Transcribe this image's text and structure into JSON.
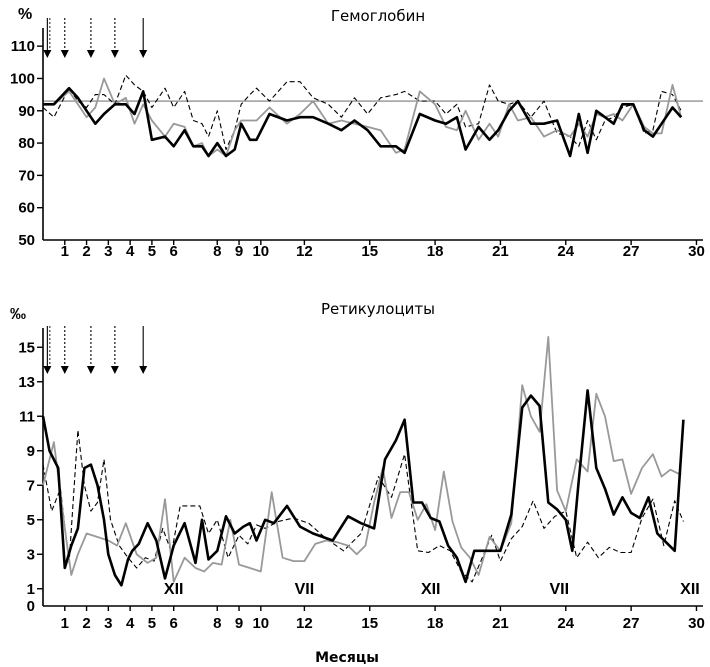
{
  "chart_data": [
    {
      "type": "line",
      "title": "Гемоглобин",
      "ylabel": "%",
      "xlabel": "",
      "ylim": [
        50,
        115
      ],
      "xlim": [
        0,
        30.3
      ],
      "yticks": [
        50,
        60,
        70,
        80,
        90,
        100,
        110
      ],
      "xticks": [
        1,
        2,
        3,
        4,
        5,
        6,
        8,
        9,
        10,
        12,
        15,
        18,
        21,
        24,
        27,
        30
      ],
      "reference_line": 93,
      "arrows_x": [
        0.2,
        1.0,
        2.2,
        3.3,
        4.6
      ],
      "series": [
        {
          "name": "black",
          "color": "#000000",
          "style": "solid-thick",
          "x": [
            0,
            0.5,
            1.2,
            1.6,
            2.0,
            2.4,
            2.8,
            3.3,
            3.8,
            4.2,
            4.6,
            5.0,
            5.6,
            6.0,
            6.5,
            6.9,
            7.3,
            7.6,
            8.0,
            8.4,
            8.8,
            9.1,
            9.5,
            9.8,
            10.4,
            11.2,
            11.8,
            12.4,
            13.1,
            13.7,
            14.3,
            14.9,
            15.5,
            16.2,
            16.6,
            17.3,
            18.0,
            18.5,
            19.0,
            19.4,
            20.0,
            20.5,
            20.9,
            21.4,
            21.8,
            22.4,
            23.0,
            23.6,
            24.2,
            24.6,
            25.0,
            25.4,
            25.8,
            26.2,
            26.6,
            27.1,
            27.6,
            28.0,
            28.4,
            28.9,
            29.3
          ],
          "y": [
            92,
            92,
            97,
            94,
            90,
            86,
            89,
            92,
            92,
            89,
            96,
            81,
            82,
            79,
            84,
            79,
            79,
            76,
            80,
            76,
            78,
            86,
            81,
            81,
            89,
            87,
            88,
            88,
            86,
            84,
            87,
            84,
            79,
            79,
            77,
            89,
            87,
            86,
            88,
            78,
            85,
            81,
            84,
            90,
            93,
            86,
            86,
            87,
            76,
            89,
            77,
            90,
            88,
            86,
            92,
            92,
            84,
            82,
            86,
            91,
            88
          ]
        },
        {
          "name": "gray",
          "color": "#999999",
          "style": "solid",
          "x": [
            0,
            0.5,
            1.2,
            1.6,
            2.0,
            2.4,
            2.8,
            3.3,
            3.8,
            4.2,
            4.6,
            5.0,
            5.6,
            6.0,
            6.5,
            6.9,
            7.3,
            7.6,
            8.0,
            8.4,
            8.8,
            9.1,
            9.5,
            9.8,
            10.4,
            11.2,
            11.8,
            12.4,
            13.1,
            13.7,
            14.3,
            14.9,
            15.5,
            16.2,
            16.6,
            17.3,
            18.0,
            18.5,
            19.0,
            19.4,
            20.0,
            20.5,
            20.9,
            21.4,
            21.8,
            22.4,
            23.0,
            23.6,
            24.2,
            24.6,
            25.0,
            25.4,
            25.8,
            26.2,
            26.6,
            27.1,
            27.6,
            28.0,
            28.4,
            28.9,
            29.3
          ],
          "y": [
            92,
            92,
            96,
            92,
            88,
            91,
            100,
            92,
            94,
            86,
            92,
            87,
            82,
            86,
            85,
            79,
            80,
            76,
            78,
            76,
            84,
            87,
            87,
            87,
            91,
            86,
            89,
            93,
            86,
            87,
            86,
            85,
            84,
            77,
            78,
            96,
            92,
            85,
            84,
            90,
            81,
            86,
            82,
            92,
            87,
            88,
            82,
            84,
            82,
            86,
            82,
            89,
            88,
            89,
            87,
            92,
            85,
            83,
            83,
            98,
            88
          ]
        },
        {
          "name": "dashed",
          "color": "#000000",
          "style": "dashed",
          "x": [
            0,
            0.5,
            1.2,
            1.6,
            2.0,
            2.4,
            2.8,
            3.3,
            3.8,
            4.2,
            4.6,
            5.0,
            5.6,
            6.0,
            6.5,
            6.9,
            7.3,
            7.6,
            8.0,
            8.4,
            8.8,
            9.1,
            9.5,
            9.8,
            10.4,
            11.2,
            11.8,
            12.4,
            13.1,
            13.7,
            14.3,
            14.9,
            15.5,
            16.2,
            16.6,
            17.3,
            18.0,
            18.5,
            19.0,
            19.4,
            20.0,
            20.5,
            20.9,
            21.4,
            21.8,
            22.4,
            23.0,
            23.6,
            24.2,
            24.6,
            25.0,
            25.4,
            25.8,
            26.2,
            26.6,
            27.1,
            27.6,
            28.0,
            28.4,
            28.9,
            29.3
          ],
          "y": [
            91,
            88,
            97,
            93,
            91,
            95,
            95,
            92,
            101,
            98,
            96,
            91,
            97,
            91,
            96,
            87,
            86,
            82,
            90,
            78,
            84,
            92,
            95,
            97,
            93,
            99,
            99,
            94,
            92,
            88,
            94,
            89,
            94,
            95,
            96,
            93,
            93,
            89,
            92,
            85,
            86,
            98,
            93,
            92,
            93,
            88,
            93,
            83,
            82,
            79,
            87,
            81,
            87,
            88,
            91,
            92,
            83,
            84,
            96,
            95,
            90
          ]
        }
      ]
    },
    {
      "type": "line",
      "title": "Ретикулоциты",
      "ylabel": "‰",
      "xlabel": "Месяцы",
      "ylim": [
        0,
        16
      ],
      "xlim": [
        0,
        30.3
      ],
      "yticks": [
        0,
        1,
        3,
        5,
        7,
        9,
        11,
        13,
        15
      ],
      "xticks": [
        1,
        2,
        3,
        4,
        5,
        6,
        8,
        9,
        10,
        12,
        15,
        18,
        21,
        24,
        27,
        30
      ],
      "arrows_x": [
        0.2,
        1.0,
        2.2,
        3.3,
        4.6
      ],
      "season_labels": [
        {
          "x": 6.0,
          "label": "XII"
        },
        {
          "x": 12.0,
          "label": "VII"
        },
        {
          "x": 17.8,
          "label": "XII"
        },
        {
          "x": 23.7,
          "label": "VII"
        },
        {
          "x": 29.7,
          "label": "XII"
        }
      ],
      "series": [
        {
          "name": "black",
          "color": "#000000",
          "style": "solid-thick",
          "x": [
            0,
            0.3,
            0.7,
            1.0,
            1.3,
            1.6,
            1.9,
            2.2,
            2.5,
            2.8,
            3.0,
            3.3,
            3.6,
            3.9,
            4.1,
            4.4,
            4.8,
            5.2,
            5.6,
            6.0,
            6.5,
            7.0,
            7.3,
            7.6,
            8.0,
            8.4,
            8.8,
            9.2,
            9.5,
            9.8,
            10.2,
            10.6,
            11.2,
            11.8,
            12.4,
            13.3,
            14.0,
            14.6,
            15.2,
            15.7,
            16.2,
            16.6,
            17.0,
            17.4,
            17.8,
            18.2,
            18.6,
            19.0,
            19.4,
            19.8,
            20.2,
            21.0,
            21.5,
            22.0,
            22.4,
            22.8,
            23.2,
            23.6,
            24.0,
            24.3,
            24.6,
            25.0,
            25.4,
            25.8,
            26.2,
            26.6,
            27.0,
            27.4,
            27.8,
            28.2,
            28.6,
            29.0,
            29.4
          ],
          "y": [
            11,
            9,
            8,
            2.2,
            3.5,
            4.5,
            8,
            8.2,
            7,
            5,
            3,
            1.8,
            1.2,
            2.7,
            3.2,
            3.6,
            4.8,
            3.8,
            1.6,
            3.5,
            4.8,
            2.5,
            5,
            2.7,
            3.2,
            5.2,
            4.2,
            4.6,
            4.8,
            3.8,
            5,
            4.8,
            5.8,
            4.6,
            4.2,
            3.8,
            5.2,
            4.8,
            4.5,
            8.5,
            9.6,
            10.8,
            6,
            6,
            5.1,
            4.9,
            3.5,
            2.8,
            1.4,
            3.2,
            3.2,
            3.2,
            5.3,
            11.5,
            12.2,
            11.6,
            6,
            5.6,
            5,
            3.2,
            7.3,
            12.5,
            8,
            6.8,
            5.3,
            6.3,
            5.4,
            5.1,
            6.3,
            4.2,
            3.7,
            3.2,
            10.8
          ]
        },
        {
          "name": "gray",
          "color": "#999999",
          "style": "solid",
          "x": [
            0,
            0.5,
            1.0,
            1.3,
            1.6,
            2.0,
            2.5,
            3.0,
            3.4,
            3.8,
            4.3,
            4.8,
            5.2,
            5.6,
            6.0,
            6.5,
            7.0,
            7.4,
            7.8,
            8.2,
            8.6,
            9.0,
            9.5,
            10.0,
            10.5,
            11.0,
            11.5,
            12.0,
            12.5,
            13.0,
            13.5,
            14.0,
            14.4,
            14.8,
            15.2,
            15.6,
            16.0,
            16.4,
            16.8,
            17.2,
            17.6,
            18.0,
            18.4,
            18.8,
            19.2,
            19.6,
            20.0,
            20.5,
            21.0,
            21.5,
            22.0,
            22.4,
            22.8,
            23.2,
            23.6,
            24.0,
            24.5,
            25.0,
            25.4,
            25.8,
            26.2,
            26.6,
            27.0,
            27.5,
            28.0,
            28.4,
            28.8,
            29.3
          ],
          "y": [
            7,
            9.5,
            4.5,
            1.8,
            3,
            4.2,
            4,
            3.8,
            3.5,
            4.8,
            3,
            2.5,
            2.8,
            6.2,
            1.4,
            2.8,
            2.2,
            2,
            2.5,
            2.4,
            5,
            2.4,
            2.2,
            2,
            6.6,
            2.8,
            2.6,
            2.6,
            3.6,
            3.8,
            3.7,
            3.5,
            3,
            3.5,
            6,
            8,
            5.1,
            6.6,
            6.6,
            5,
            5.9,
            4.4,
            7.8,
            4.9,
            3.4,
            2.8,
            1.8,
            4,
            3.2,
            4.8,
            12.8,
            11,
            10.1,
            15.6,
            6.7,
            5.5,
            8.5,
            7.8,
            12.3,
            11,
            8.4,
            8.5,
            6.5,
            8,
            8.8,
            7.5,
            7.9,
            7.6
          ]
        },
        {
          "name": "dashed",
          "color": "#000000",
          "style": "dashed",
          "x": [
            0,
            0.4,
            0.8,
            1.2,
            1.6,
            1.9,
            2.2,
            2.5,
            2.8,
            3.1,
            3.5,
            3.9,
            4.3,
            4.7,
            5.1,
            5.5,
            5.9,
            6.3,
            6.8,
            7.2,
            7.6,
            8.0,
            8.5,
            9.0,
            9.4,
            9.8,
            10.2,
            10.8,
            11.5,
            12.2,
            13.0,
            13.8,
            14.6,
            15.4,
            16.0,
            16.6,
            17.2,
            17.7,
            18.2,
            18.7,
            19.2,
            19.7,
            20.2,
            20.6,
            21.0,
            21.5,
            22.0,
            22.5,
            23.0,
            23.5,
            24.0,
            24.5,
            25.0,
            25.5,
            26.0,
            26.5,
            27.0,
            27.5,
            28.0,
            28.5,
            29.0,
            29.4
          ],
          "y": [
            8.2,
            5.5,
            6.8,
            2.5,
            10.2,
            7,
            5.5,
            6,
            8.5,
            5,
            3.5,
            2.8,
            2.2,
            2.8,
            2.6,
            4.5,
            3.1,
            5.8,
            5.8,
            5.8,
            4.2,
            5,
            2.8,
            4.1,
            3.6,
            4.7,
            4.5,
            4.9,
            5.1,
            4.8,
            3.9,
            3.2,
            4.2,
            7.5,
            6.3,
            8.8,
            3.2,
            3.1,
            3.5,
            3.2,
            2,
            1.4,
            2.9,
            4.1,
            2.6,
            3.9,
            4.6,
            6.1,
            4.5,
            5.2,
            5.5,
            2.8,
            3.7,
            2.8,
            3.4,
            3.1,
            3.1,
            5.1,
            6.2,
            3.5,
            6.1,
            4.9
          ]
        }
      ]
    }
  ],
  "labels": {
    "chart1_title": "Гемоглобин",
    "chart1_unit": "%",
    "chart2_title": "Ретикулоциты",
    "chart2_unit": "‰",
    "x_axis_title": "Месяцы"
  }
}
